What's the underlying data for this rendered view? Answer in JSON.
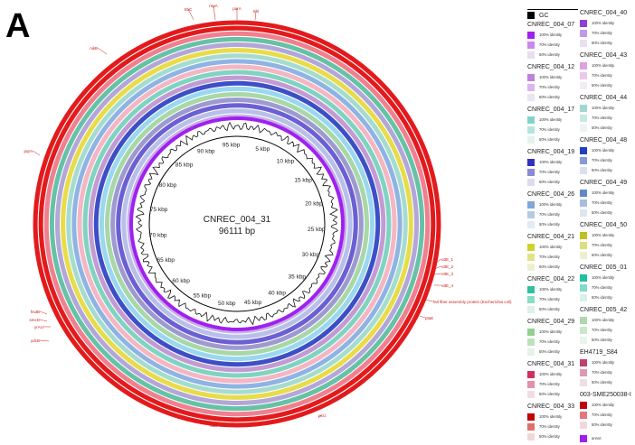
{
  "figure": {
    "panel_letter": "A",
    "plasmid_name": "CNREC_004_31",
    "plasmid_size": "96111 bp"
  },
  "ticks": [
    "5 kbp",
    "10 kbp",
    "15 kbp",
    "20 kbp",
    "25 kbp",
    "30 kbp",
    "35 kbp",
    "40 kbp",
    "45 kbp",
    "50 kbp",
    "55 kbp",
    "60 kbp",
    "65 kbp",
    "70 kbp",
    "75 kbp",
    "80 kbp",
    "85 kbp",
    "90 kbp",
    "95 kbp"
  ],
  "gene_labels": [
    {
      "text": "nikB"
    },
    {
      "text": "trbC"
    },
    {
      "text": "repA"
    },
    {
      "text": "parA"
    },
    {
      "text": "trbl"
    },
    {
      "text": "pqrA"
    },
    {
      "text": "ottE_1"
    },
    {
      "text": "ottE_2"
    },
    {
      "text": "ottE_3"
    },
    {
      "text": "ottE_4"
    },
    {
      "text": "Tail fiber assembly protein (Escherichia coli)"
    },
    {
      "text": "ptaE"
    },
    {
      "text": "hsdB"
    },
    {
      "text": "smcD"
    },
    {
      "text": "yrAU"
    },
    {
      "text": "ydcB"
    },
    {
      "text": "yicU"
    },
    {
      "text": "nikD"
    }
  ],
  "rings": [
    {
      "color": "#e31a1c"
    },
    {
      "color": "#e31a1c"
    },
    {
      "color": "#f08090"
    },
    {
      "color": "#66c2a5"
    },
    {
      "color": "#b3a6d9"
    },
    {
      "color": "#e8dc4a"
    },
    {
      "color": "#a6dcd0"
    },
    {
      "color": "#8fb4e3"
    },
    {
      "color": "#f4b6c2"
    },
    {
      "color": "#7fd4c1"
    },
    {
      "color": "#c39bd3"
    },
    {
      "color": "#3c4fc7"
    },
    {
      "color": "#9ad7f0"
    },
    {
      "color": "#a8d8a8"
    },
    {
      "color": "#9e9ad1"
    },
    {
      "color": "#6b5fd4"
    },
    {
      "color": "#b9c0e8"
    },
    {
      "color": "#c6b0e6"
    }
  ],
  "legend": {
    "gc_label": "GC",
    "identity_labels": [
      "100% identity",
      "70% identity",
      "50% identity"
    ],
    "anno_label": "annot",
    "left_entries": [
      {
        "name": "CNREC_004_07",
        "colors": [
          "#a020f0",
          "#cc88ee",
          "#e6e0ea"
        ]
      },
      {
        "name": "CNREC_004_12",
        "colors": [
          "#c080e0",
          "#ddb4ee",
          "#ece4f1"
        ]
      },
      {
        "name": "CNREC_004_17",
        "colors": [
          "#80d4c8",
          "#b4e6df",
          "#e4f2f0"
        ]
      },
      {
        "name": "CNREC_004_19",
        "colors": [
          "#3030c0",
          "#8a8ad8",
          "#dcdcee"
        ]
      },
      {
        "name": "CNREC_004_26",
        "colors": [
          "#80a8d8",
          "#b4cae6",
          "#e2eaf2"
        ]
      },
      {
        "name": "CNREC_004_21",
        "colors": [
          "#d0d030",
          "#e2e288",
          "#eeeed4"
        ]
      },
      {
        "name": "CNREC_004_22",
        "colors": [
          "#30c0a0",
          "#88dcc8",
          "#dcf0ea"
        ]
      },
      {
        "name": "CNREC_004_29",
        "colors": [
          "#90d090",
          "#bce2bc",
          "#e6f2e6"
        ]
      },
      {
        "name": "CNREC_004_31",
        "colors": [
          "#d03060",
          "#e490aa",
          "#f2dce4"
        ]
      },
      {
        "name": "CNREC_004_33",
        "colors": [
          "#c00000",
          "#e07070",
          "#f0d8d8"
        ]
      }
    ],
    "right_entries": [
      {
        "name": "CNREC_004_40",
        "colors": [
          "#9040d0",
          "#c09ae4",
          "#e8e0f0"
        ]
      },
      {
        "name": "CNREC_004_43",
        "colors": [
          "#e0a0e0",
          "#ecc8ec",
          "#f4ecf4"
        ]
      },
      {
        "name": "CNREC_004_44",
        "colors": [
          "#a0d8d0",
          "#c8e8e2",
          "#eaf4f2"
        ]
      },
      {
        "name": "CNREC_004_48",
        "colors": [
          "#2040c0",
          "#8898d8",
          "#dce0ee"
        ]
      },
      {
        "name": "CNREC_004_49",
        "colors": [
          "#6088c8",
          "#a8bce0",
          "#e0e6f0"
        ]
      },
      {
        "name": "CNREC_004_50",
        "colors": [
          "#c0c020",
          "#dcdc80",
          "#eeeed0"
        ]
      },
      {
        "name": "CNREC_005_01",
        "colors": [
          "#20c0a0",
          "#80dcc8",
          "#d8f0ea"
        ]
      },
      {
        "name": "CNREC_005_42",
        "colors": [
          "#b0d8b0",
          "#cce6cc",
          "#eaf4ea"
        ]
      },
      {
        "name": "EH4719_S84",
        "colors": [
          "#c04070",
          "#dc98b0",
          "#f0dee6"
        ]
      },
      {
        "name": "003-SME250038-I",
        "colors": [
          "#c00010",
          "#e07880",
          "#f0d8da"
        ]
      }
    ],
    "anno_color": "#a020f0"
  }
}
